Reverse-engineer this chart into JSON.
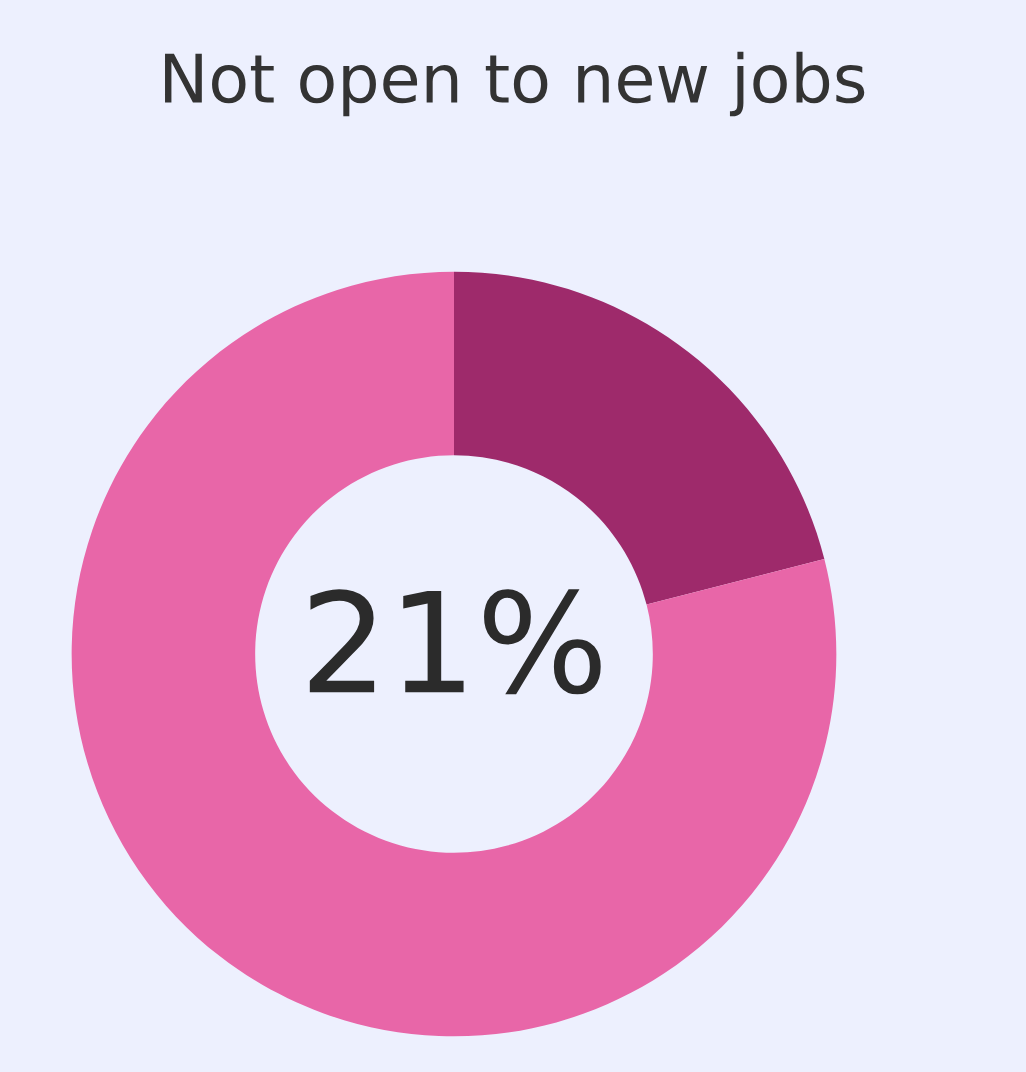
{
  "chart_data": {
    "type": "donut",
    "title": "Not open to new jobs",
    "categories": [
      null,
      null
    ],
    "values": [
      21,
      79
    ],
    "colors": [
      "#9e2a6b",
      "#e866a8"
    ],
    "value_labels": [
      "21%",
      null
    ]
  }
}
